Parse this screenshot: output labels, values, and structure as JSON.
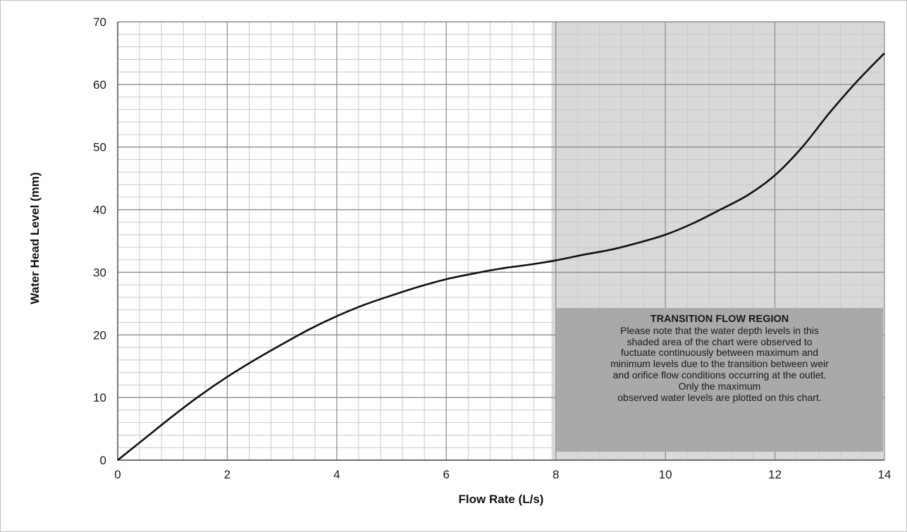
{
  "chart_data": {
    "type": "line",
    "xlabel": "Flow Rate (L/s)",
    "ylabel": "Water Head Level (mm)",
    "xlim": [
      0,
      14
    ],
    "ylim": [
      0,
      70
    ],
    "x_ticks": [
      "0",
      "2",
      "4",
      "6",
      "8",
      "10",
      "12",
      "14"
    ],
    "y_ticks": [
      "0",
      "10",
      "20",
      "30",
      "40",
      "50",
      "60",
      "70"
    ],
    "grid": true,
    "series": [
      {
        "x": [
          0,
          0.5,
          1,
          1.5,
          2,
          2.5,
          3,
          3.5,
          4,
          4.5,
          5,
          5.5,
          6,
          6.5,
          7,
          7.5,
          8,
          8.5,
          9,
          9.5,
          10,
          10.5,
          11,
          11.5,
          12,
          12.5,
          13,
          13.5,
          14
        ],
        "values": [
          0,
          3.5,
          7.0,
          10.3,
          13.3,
          16.0,
          18.5,
          20.9,
          23.0,
          24.8,
          26.3,
          27.7,
          28.9,
          29.8,
          30.6,
          31.2,
          31.9,
          32.8,
          33.6,
          34.7,
          36.0,
          37.8,
          40.0,
          42.3,
          45.5,
          50.0,
          55.5,
          60.5,
          65.0
        ],
        "color": "#111111"
      }
    ],
    "shaded_region": {
      "x_range": [
        8,
        14
      ],
      "color": "#d9d9d9"
    },
    "annotation": {
      "title": "TRANSITION FLOW REGION",
      "lines": [
        "Please note that the water depth levels in this",
        "shaded area of the chart were observed to",
        "fuctuate continuously between maximum and",
        "minimum levels due to the transition between weir",
        "and orifice flow conditions occurring at the outlet.",
        "Only the maximum",
        "observed water levels are plotted on this chart."
      ]
    }
  }
}
